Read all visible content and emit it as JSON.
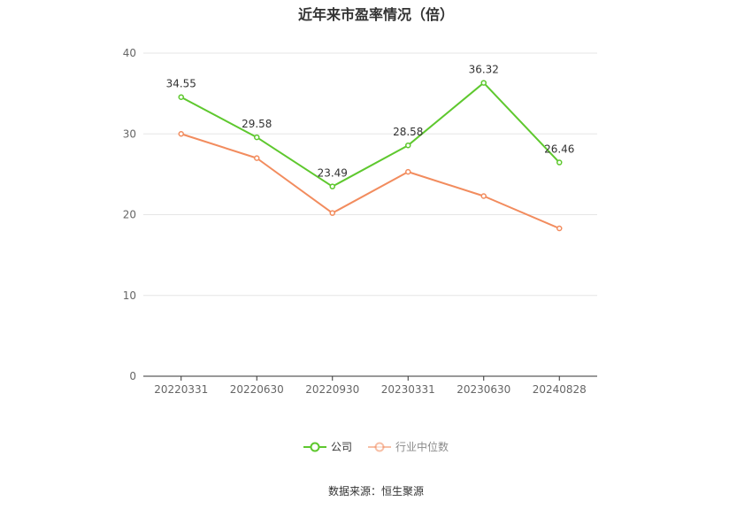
{
  "chart_data": {
    "type": "line",
    "title": "近年来市盈率情况（倍）",
    "categories": [
      "20220331",
      "20220630",
      "20220930",
      "20230331",
      "20230630",
      "20240828"
    ],
    "ylim": [
      0,
      40
    ],
    "yticks": [
      0,
      10,
      20,
      30,
      40
    ],
    "grid": true,
    "legend_position": "bottom-center",
    "series": [
      {
        "name": "公司",
        "color": "#5ec82e",
        "values": [
          34.55,
          29.58,
          23.49,
          28.58,
          36.32,
          26.46
        ],
        "labels": [
          "34.55",
          "29.58",
          "23.49",
          "28.58",
          "36.32",
          "26.46"
        ]
      },
      {
        "name": "行业中位数",
        "color": "#f28c5e",
        "values": [
          30.0,
          27.0,
          20.2,
          25.3,
          22.3,
          18.3
        ]
      }
    ],
    "source": "数据来源：恒生聚源"
  }
}
